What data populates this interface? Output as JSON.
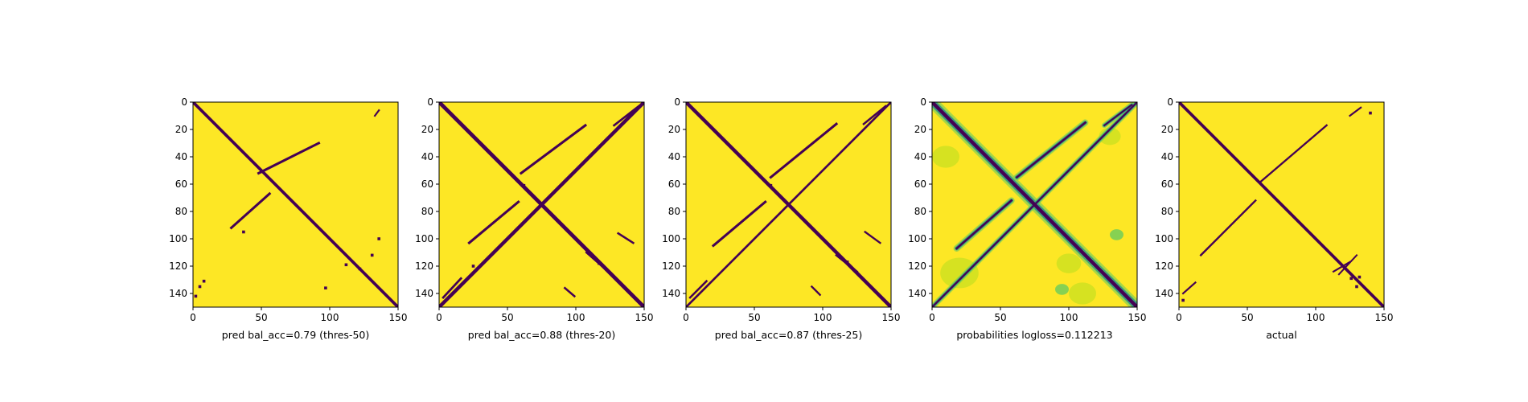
{
  "chart_data": [
    {
      "type": "heatmap",
      "title": "",
      "xlabel": "pred bal_acc=0.79 (thres-50)",
      "ylabel": "",
      "xlim": [
        0,
        150
      ],
      "ylim": [
        150,
        0
      ],
      "x_ticks": [
        0,
        50,
        100,
        150
      ],
      "y_ticks": [
        0,
        20,
        40,
        60,
        80,
        100,
        120,
        140
      ],
      "grid": false,
      "colors": {
        "background": "#fde725",
        "contact": "#440154"
      },
      "contact_segments": [
        {
          "from": [
            0,
            0
          ],
          "to": [
            150,
            150
          ],
          "width": 2.2
        },
        {
          "from": [
            48,
            52
          ],
          "to": [
            92,
            30
          ],
          "width": 1.8
        },
        {
          "from": [
            28,
            92
          ],
          "to": [
            56,
            67
          ],
          "width": 1.8
        },
        {
          "from": [
            133,
            10
          ],
          "to": [
            136,
            6
          ],
          "width": 1.3
        }
      ],
      "contact_dots": [
        [
          37,
          95
        ],
        [
          136,
          100
        ],
        [
          131,
          112
        ],
        [
          112,
          119
        ],
        [
          122,
          122
        ],
        [
          8,
          131
        ],
        [
          5,
          135
        ],
        [
          97,
          136
        ],
        [
          2,
          142
        ]
      ]
    },
    {
      "type": "heatmap",
      "title": "",
      "xlabel": "pred bal_acc=0.88 (thres-20)",
      "ylabel": "",
      "xlim": [
        0,
        150
      ],
      "ylim": [
        150,
        0
      ],
      "x_ticks": [
        0,
        50,
        100,
        150
      ],
      "y_ticks": [
        0,
        20,
        40,
        60,
        80,
        100,
        120,
        140
      ],
      "grid": false,
      "colors": {
        "background": "#fde725",
        "contact": "#440154"
      },
      "contact_segments": [
        {
          "from": [
            0,
            0
          ],
          "to": [
            150,
            150
          ],
          "width": 2.8
        },
        {
          "from": [
            0,
            150
          ],
          "to": [
            150,
            0
          ],
          "width": 2.6
        },
        {
          "from": [
            60,
            52
          ],
          "to": [
            107,
            17
          ],
          "width": 1.8
        },
        {
          "from": [
            22,
            103
          ],
          "to": [
            58,
            73
          ],
          "width": 1.8
        },
        {
          "from": [
            128,
            17
          ],
          "to": [
            146,
            3
          ],
          "width": 1.6
        },
        {
          "from": [
            3,
            143
          ],
          "to": [
            16,
            129
          ],
          "width": 1.6
        },
        {
          "from": [
            108,
            110
          ],
          "to": [
            125,
            125
          ],
          "width": 1.8
        },
        {
          "from": [
            131,
            96
          ],
          "to": [
            142,
            103
          ],
          "width": 1.5
        },
        {
          "from": [
            92,
            136
          ],
          "to": [
            99,
            142
          ],
          "width": 1.5
        }
      ],
      "contact_dots": [
        [
          62,
          61
        ],
        [
          25,
          120
        ],
        [
          117,
          118
        ]
      ]
    },
    {
      "type": "heatmap",
      "title": "",
      "xlabel": "pred bal_acc=0.87 (thres-25)",
      "ylabel": "",
      "xlim": [
        0,
        150
      ],
      "ylim": [
        150,
        0
      ],
      "x_ticks": [
        0,
        50,
        100,
        150
      ],
      "y_ticks": [
        0,
        20,
        40,
        60,
        80,
        100,
        120,
        140
      ],
      "grid": false,
      "colors": {
        "background": "#fde725",
        "contact": "#440154"
      },
      "contact_segments": [
        {
          "from": [
            0,
            0
          ],
          "to": [
            150,
            150
          ],
          "width": 2.6
        },
        {
          "from": [
            0,
            150
          ],
          "to": [
            150,
            0
          ],
          "width": 1.6
        },
        {
          "from": [
            62,
            55
          ],
          "to": [
            110,
            16
          ],
          "width": 1.8
        },
        {
          "from": [
            20,
            105
          ],
          "to": [
            58,
            73
          ],
          "width": 1.8
        },
        {
          "from": [
            130,
            16
          ],
          "to": [
            146,
            3
          ],
          "width": 1.5
        },
        {
          "from": [
            3,
            143
          ],
          "to": [
            15,
            131
          ],
          "width": 1.5
        },
        {
          "from": [
            110,
            112
          ],
          "to": [
            125,
            124
          ],
          "width": 1.6
        },
        {
          "from": [
            131,
            95
          ],
          "to": [
            142,
            103
          ],
          "width": 1.4
        },
        {
          "from": [
            92,
            135
          ],
          "to": [
            98,
            141
          ],
          "width": 1.4
        }
      ],
      "contact_dots": [
        [
          62,
          61
        ],
        [
          118,
          117
        ]
      ]
    },
    {
      "type": "heatmap",
      "title": "",
      "xlabel": "probabilities logloss=0.112213",
      "ylabel": "",
      "xlim": [
        0,
        150
      ],
      "ylim": [
        150,
        0
      ],
      "x_ticks": [
        0,
        50,
        100,
        150
      ],
      "y_ticks": [
        0,
        20,
        40,
        60,
        80,
        100,
        120,
        140
      ],
      "grid": false,
      "colors": {
        "background": "#fde725",
        "low": "#c8e020",
        "mid": "#5ec962",
        "high": "#21918c",
        "contact": "#440154"
      },
      "colormap": "viridis",
      "contact_segments": [
        {
          "from": [
            0,
            0
          ],
          "to": [
            150,
            150
          ],
          "width": 2.6
        },
        {
          "from": [
            0,
            150
          ],
          "to": [
            150,
            0
          ],
          "width": 1.3
        },
        {
          "from": [
            62,
            55
          ],
          "to": [
            112,
            15
          ],
          "width": 1.5
        },
        {
          "from": [
            18,
            107
          ],
          "to": [
            58,
            72
          ],
          "width": 1.5
        },
        {
          "from": [
            126,
            17
          ],
          "to": [
            146,
            2
          ],
          "width": 1.2
        },
        {
          "from": [
            110,
            110
          ],
          "to": [
            126,
            126
          ],
          "width": 1.2
        }
      ],
      "probability_blobs": [
        {
          "x": 20,
          "y": 125,
          "size": 14,
          "level": "low"
        },
        {
          "x": 10,
          "y": 40,
          "size": 10,
          "level": "low"
        },
        {
          "x": 130,
          "y": 25,
          "size": 8,
          "level": "low"
        },
        {
          "x": 110,
          "y": 140,
          "size": 10,
          "level": "low"
        },
        {
          "x": 100,
          "y": 118,
          "size": 9,
          "level": "low"
        },
        {
          "x": 135,
          "y": 97,
          "size": 5,
          "level": "mid"
        },
        {
          "x": 95,
          "y": 137,
          "size": 5,
          "level": "mid"
        }
      ],
      "contact_dots": []
    },
    {
      "type": "heatmap",
      "title": "",
      "xlabel": "actual",
      "ylabel": "",
      "xlim": [
        0,
        150
      ],
      "ylim": [
        150,
        0
      ],
      "x_ticks": [
        0,
        50,
        100,
        150
      ],
      "y_ticks": [
        0,
        20,
        40,
        60,
        80,
        100,
        120,
        140
      ],
      "grid": false,
      "colors": {
        "background": "#fde725",
        "contact": "#440154"
      },
      "contact_segments": [
        {
          "from": [
            0,
            0
          ],
          "to": [
            150,
            150
          ],
          "width": 2.2
        },
        {
          "from": [
            60,
            58
          ],
          "to": [
            108,
            17
          ],
          "width": 1.4
        },
        {
          "from": [
            16,
            112
          ],
          "to": [
            56,
            72
          ],
          "width": 1.4
        },
        {
          "from": [
            125,
            10
          ],
          "to": [
            133,
            4
          ],
          "width": 1.3
        },
        {
          "from": [
            3,
            140
          ],
          "to": [
            12,
            132
          ],
          "width": 1.3
        },
        {
          "from": [
            113,
            124
          ],
          "to": [
            125,
            117
          ],
          "width": 1.3
        },
        {
          "from": [
            117,
            126
          ],
          "to": [
            130,
            112
          ],
          "width": 1.2
        }
      ],
      "contact_dots": [
        [
          140,
          8
        ],
        [
          3,
          145
        ],
        [
          132,
          128
        ],
        [
          126,
          129
        ],
        [
          130,
          135
        ]
      ]
    }
  ]
}
